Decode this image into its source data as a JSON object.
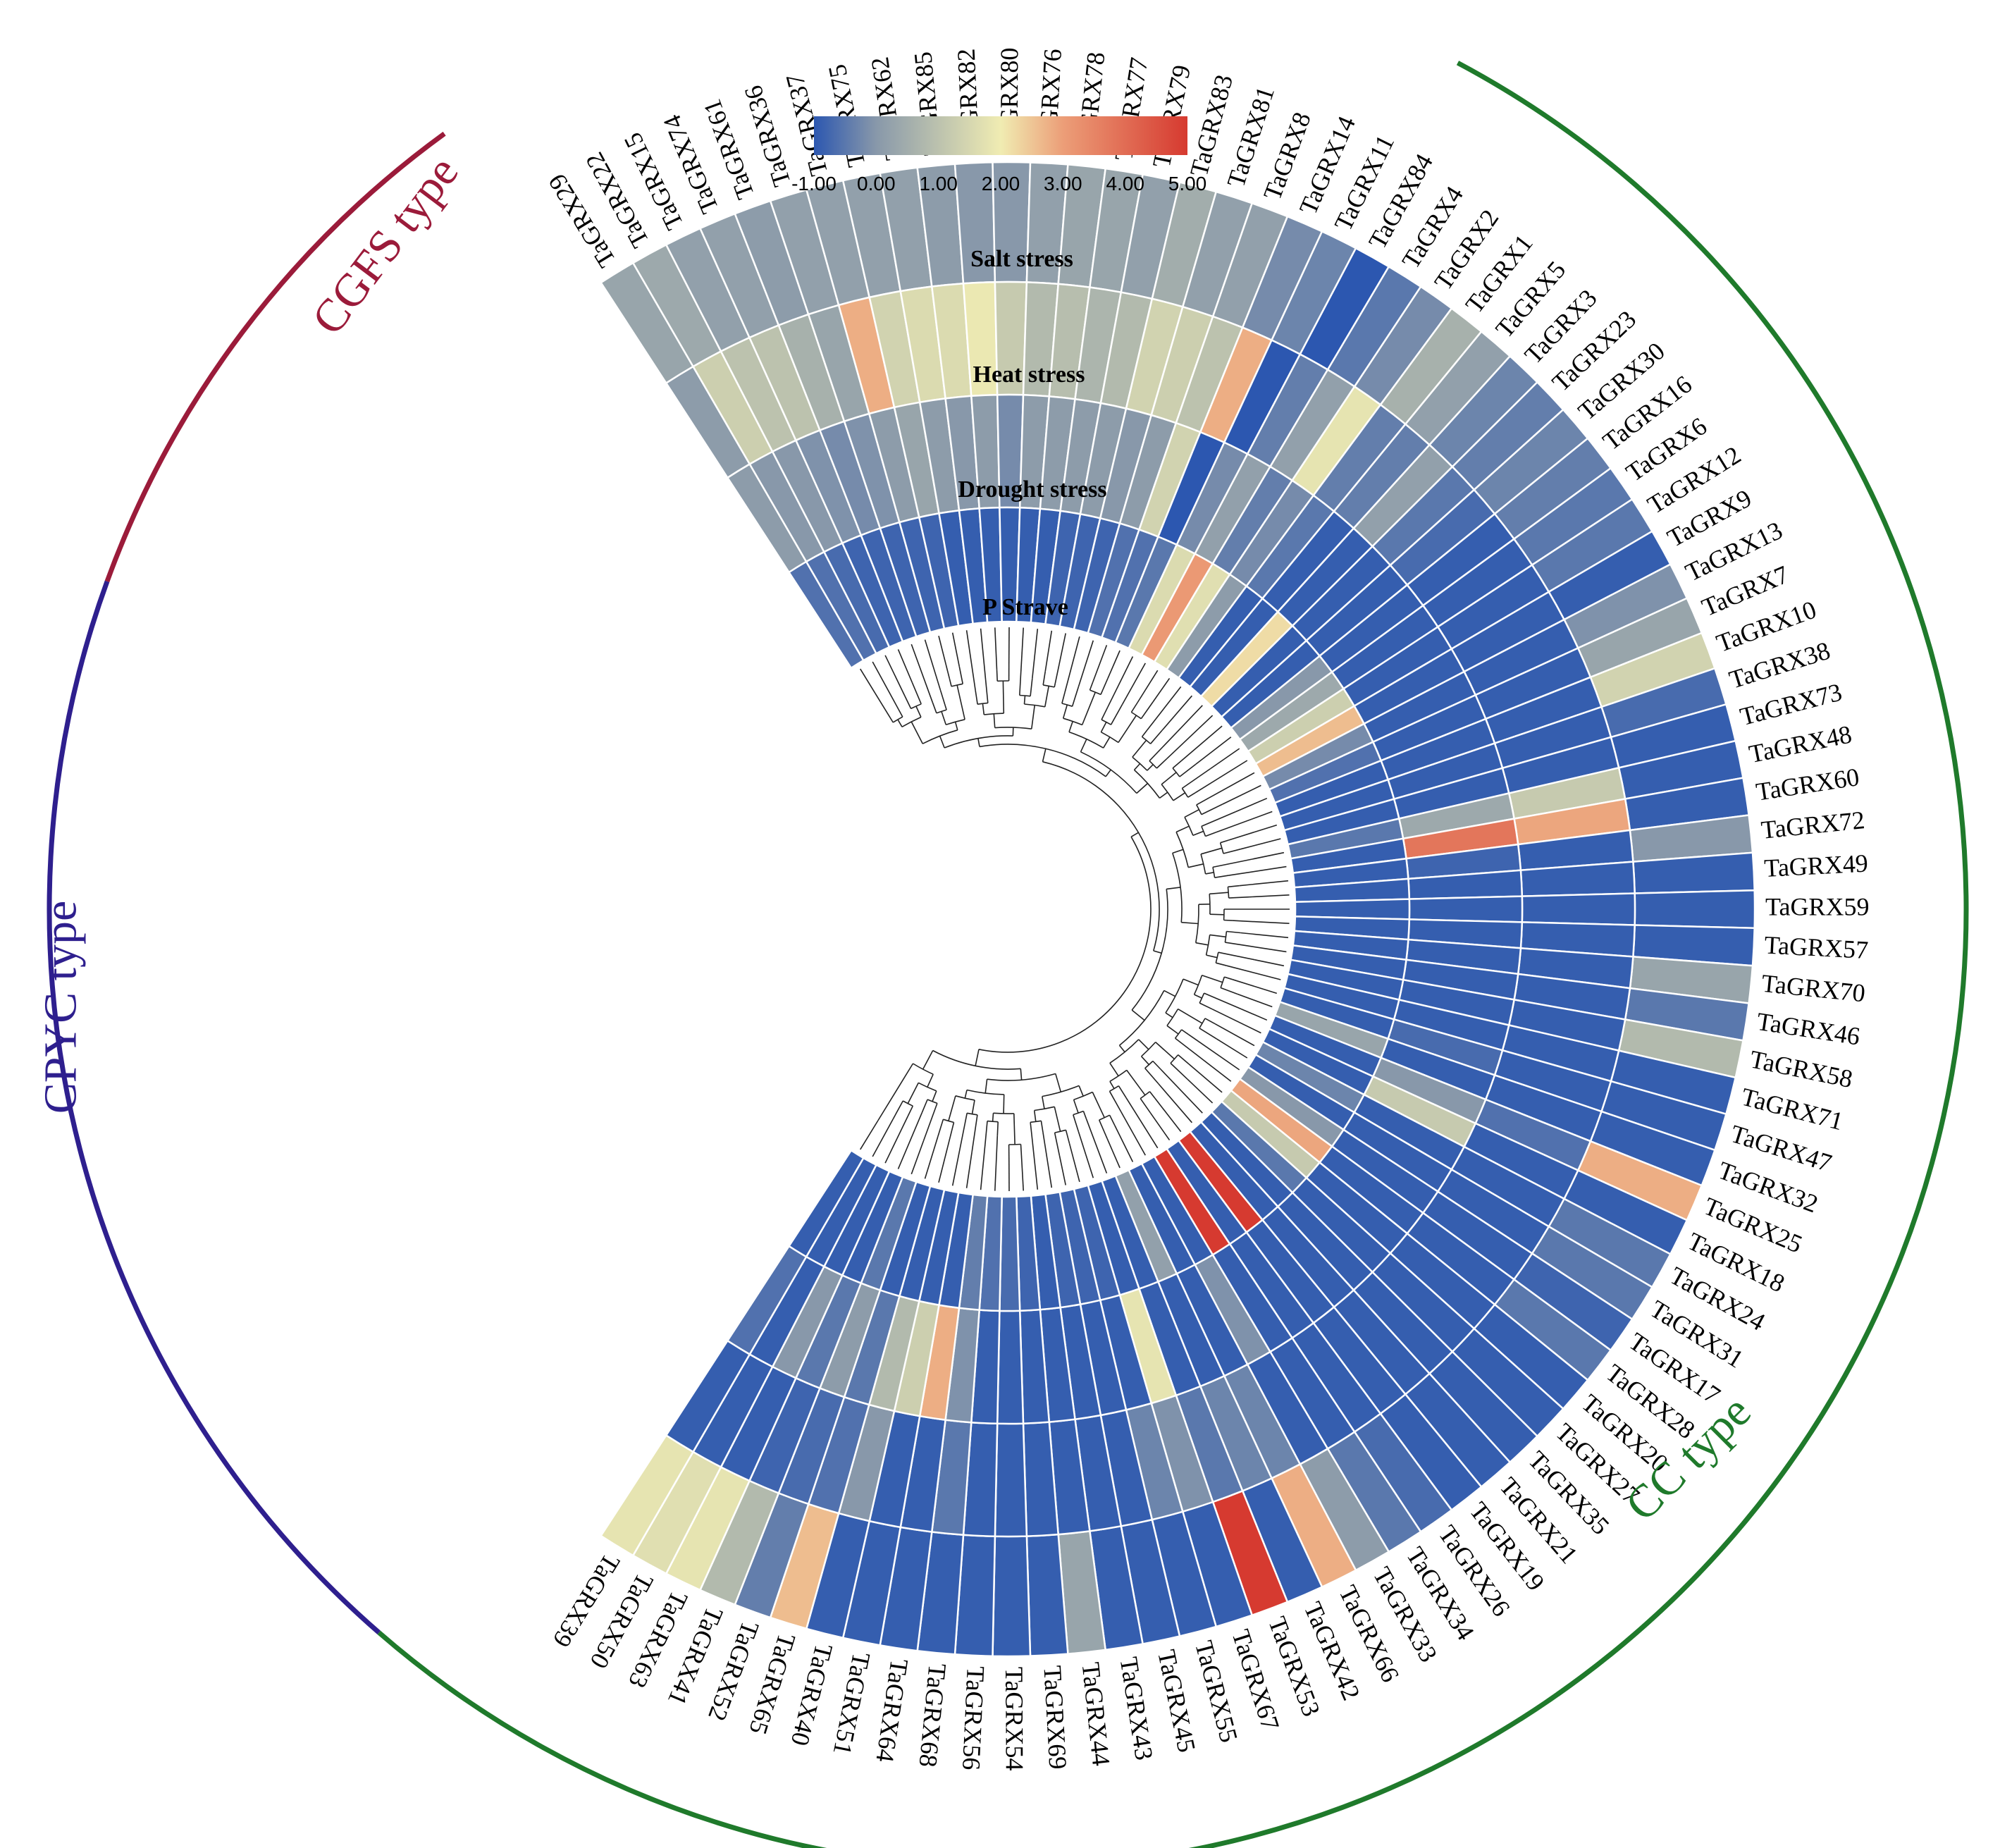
{
  "chart_data": {
    "type": "heatmap",
    "layout": "circular",
    "rows": [
      "Salt stress",
      "Heat stress",
      "Drought stress",
      "P Strave"
    ],
    "colorbar": {
      "ticks": [
        "-1.00",
        "0.00",
        "1.00",
        "2.00",
        "3.00",
        "4.00",
        "5.00"
      ],
      "range": [
        -1,
        5
      ],
      "colors": [
        "#2c57b0",
        "#8898aa",
        "#f0ecb2",
        "#ec9e78",
        "#d63a30"
      ]
    },
    "genes": [
      "TaGRX29",
      "TaGRX22",
      "TaGRX15",
      "TaGRX74",
      "TaGRX61",
      "TaGRX36",
      "TaGRX37",
      "TaGRX75",
      "TaGRX62",
      "TaGRX85",
      "TaGRX82",
      "TaGRX80",
      "TaGRX76",
      "TaGRX78",
      "TaGRX77",
      "TaGRX79",
      "TaGRX83",
      "TaGRX81",
      "TaGRX8",
      "TaGRX14",
      "TaGRX11",
      "TaGRX84",
      "TaGRX4",
      "TaGRX2",
      "TaGRX1",
      "TaGRX5",
      "TaGRX3",
      "TaGRX23",
      "TaGRX30",
      "TaGRX16",
      "TaGRX6",
      "TaGRX12",
      "TaGRX9",
      "TaGRX13",
      "TaGRX7",
      "TaGRX10",
      "TaGRX38",
      "TaGRX73",
      "TaGRX48",
      "TaGRX60",
      "TaGRX72",
      "TaGRX49",
      "TaGRX59",
      "TaGRX57",
      "TaGRX70",
      "TaGRX46",
      "TaGRX58",
      "TaGRX71",
      "TaGRX47",
      "TaGRX32",
      "TaGRX25",
      "TaGRX18",
      "TaGRX24",
      "TaGRX31",
      "TaGRX17",
      "TaGRX28",
      "TaGRX20",
      "TaGRX27",
      "TaGRX35",
      "TaGRX21",
      "TaGRX19",
      "TaGRX26",
      "TaGRX34",
      "TaGRX33",
      "TaGRX66",
      "TaGRX42",
      "TaGRX53",
      "TaGRX67",
      "TaGRX55",
      "TaGRX45",
      "TaGRX43",
      "TaGRX44",
      "TaGRX69",
      "TaGRX54",
      "TaGRX56",
      "TaGRX68",
      "TaGRX64",
      "TaGRX51",
      "TaGRX40",
      "TaGRX65",
      "TaGRX52",
      "TaGRX41",
      "TaGRX63",
      "TaGRX50",
      "TaGRX39"
    ],
    "values": [
      [
        0.3,
        0.1,
        0.1,
        -0.6
      ],
      [
        0.4,
        1.3,
        0.0,
        -0.6
      ],
      [
        0.2,
        1.0,
        0.0,
        -0.7
      ],
      [
        0.2,
        1.0,
        -0.1,
        -0.8
      ],
      [
        0.1,
        0.6,
        -0.2,
        -0.8
      ],
      [
        0.2,
        0.3,
        -0.1,
        -0.8
      ],
      [
        0.2,
        2.8,
        0.1,
        -0.8
      ],
      [
        0.2,
        1.4,
        0.3,
        -0.8
      ],
      [
        0.2,
        1.6,
        0.1,
        -0.9
      ],
      [
        0.1,
        1.6,
        0.0,
        -0.9
      ],
      [
        0.0,
        1.9,
        0.1,
        -0.9
      ],
      [
        0.0,
        1.2,
        -0.2,
        -0.9
      ],
      [
        0.2,
        0.8,
        0.1,
        -0.9
      ],
      [
        0.3,
        0.9,
        0.1,
        -0.9
      ],
      [
        0.3,
        0.7,
        0.1,
        -0.8
      ],
      [
        0.2,
        0.8,
        0.1,
        -0.8
      ],
      [
        0.5,
        1.4,
        0.0,
        -0.8
      ],
      [
        0.2,
        1.3,
        0.1,
        -0.6
      ],
      [
        0.2,
        1.0,
        1.4,
        -0.6
      ],
      [
        -0.2,
        2.8,
        -1.0,
        -0.5
      ],
      [
        -0.3,
        -1.0,
        -0.2,
        1.6
      ],
      [
        -1.0,
        -0.4,
        0.2,
        3.1
      ],
      [
        -0.5,
        0.2,
        -0.4,
        1.7
      ],
      [
        -0.2,
        1.8,
        -0.2,
        0.1
      ],
      [
        0.6,
        -0.4,
        -0.5,
        -0.9
      ],
      [
        0.2,
        -0.4,
        -0.9,
        -0.9
      ],
      [
        -0.3,
        0.2,
        -0.9,
        2.2
      ],
      [
        -0.4,
        -0.5,
        -0.9,
        -0.9
      ],
      [
        -0.3,
        -0.7,
        -0.9,
        -0.9
      ],
      [
        -0.4,
        -0.9,
        -0.9,
        0.0
      ],
      [
        -0.5,
        -0.9,
        -0.9,
        0.4
      ],
      [
        -0.5,
        -0.9,
        -0.9,
        1.3
      ],
      [
        -0.9,
        -0.9,
        -0.9,
        2.6
      ],
      [
        -0.1,
        -0.9,
        -0.9,
        -0.2
      ],
      [
        0.3,
        -0.9,
        -0.9,
        -0.6
      ],
      [
        1.4,
        -0.9,
        -0.9,
        -0.9
      ],
      [
        -0.7,
        -0.9,
        -0.9,
        -0.9
      ],
      [
        -0.9,
        -0.9,
        -0.9,
        -0.9
      ],
      [
        -0.9,
        1.2,
        0.4,
        -0.5
      ],
      [
        -0.9,
        2.9,
        3.8,
        -0.9
      ],
      [
        0.0,
        -0.9,
        -0.8,
        -0.9
      ],
      [
        -0.9,
        -0.9,
        -0.9,
        -0.9
      ],
      [
        -0.9,
        -0.9,
        -0.9,
        -0.9
      ],
      [
        -0.9,
        -0.9,
        -0.9,
        -0.9
      ],
      [
        0.3,
        -0.9,
        -0.9,
        -0.9
      ],
      [
        -0.5,
        -0.9,
        -0.9,
        -0.9
      ],
      [
        0.8,
        -0.9,
        -0.9,
        -0.9
      ],
      [
        -0.9,
        -0.9,
        -0.9,
        -0.9
      ],
      [
        -0.9,
        -0.9,
        -0.7,
        -0.9
      ],
      [
        -0.9,
        -0.9,
        -0.9,
        0.3
      ],
      [
        2.8,
        -0.6,
        0.0,
        -0.9
      ],
      [
        -0.9,
        -0.9,
        1.2,
        -0.9
      ],
      [
        -0.5,
        -0.9,
        -0.9,
        -0.3
      ],
      [
        -0.5,
        -0.9,
        -0.9,
        -0.9
      ],
      [
        -0.8,
        -0.9,
        -0.9,
        0.0
      ],
      [
        -0.5,
        -0.9,
        -0.9,
        2.9
      ],
      [
        -0.9,
        -0.9,
        -0.9,
        1.2
      ],
      [
        -0.9,
        -0.9,
        -0.9,
        -0.5
      ],
      [
        -0.9,
        -0.9,
        -0.9,
        -0.9
      ],
      [
        -0.9,
        -0.9,
        -0.9,
        -0.9
      ],
      [
        -0.9,
        -0.9,
        -0.9,
        5.0
      ],
      [
        -0.7,
        -0.9,
        -0.9,
        -0.9
      ],
      [
        -0.5,
        -0.9,
        -0.9,
        5.0
      ],
      [
        0.1,
        -0.9,
        -0.1,
        -0.9
      ],
      [
        2.8,
        -0.3,
        -0.9,
        -0.9
      ],
      [
        -0.9,
        -0.3,
        -0.9,
        0.2
      ],
      [
        5.0,
        -0.5,
        -0.9,
        -0.9
      ],
      [
        -0.9,
        -0.1,
        1.8,
        -0.9
      ],
      [
        -0.9,
        -0.3,
        -0.9,
        -0.8
      ],
      [
        -0.9,
        -0.9,
        -0.9,
        -0.8
      ],
      [
        -0.9,
        -0.9,
        -0.9,
        -0.8
      ],
      [
        0.3,
        -0.9,
        -0.9,
        -0.9
      ],
      [
        -0.9,
        -0.9,
        -0.9,
        -0.8
      ],
      [
        -0.9,
        -0.9,
        -0.9,
        -0.7
      ],
      [
        -0.9,
        -0.9,
        -0.9,
        -0.6
      ],
      [
        -0.9,
        -0.5,
        -0.1,
        -0.4
      ],
      [
        -0.9,
        -0.9,
        2.8,
        -0.9
      ],
      [
        -0.9,
        -0.9,
        1.3,
        -0.9
      ],
      [
        -0.9,
        0.0,
        0.8,
        -0.9
      ],
      [
        2.6,
        -0.6,
        -0.5,
        -0.9
      ],
      [
        -0.4,
        -0.7,
        0.1,
        -0.5
      ],
      [
        0.8,
        -0.8,
        -0.5,
        -0.9
      ],
      [
        1.8,
        -0.9,
        0.0,
        -0.9
      ],
      [
        1.7,
        -0.9,
        -0.9,
        -0.9
      ],
      [
        1.8,
        -0.9,
        -0.6,
        -0.9
      ]
    ],
    "groups": [
      {
        "name": "CGFS type",
        "color": "#9b1b3a"
      },
      {
        "name": "CPYC type",
        "color": "#2e1f8e"
      },
      {
        "name": "CC type",
        "color": "#1f7a2b"
      }
    ]
  }
}
